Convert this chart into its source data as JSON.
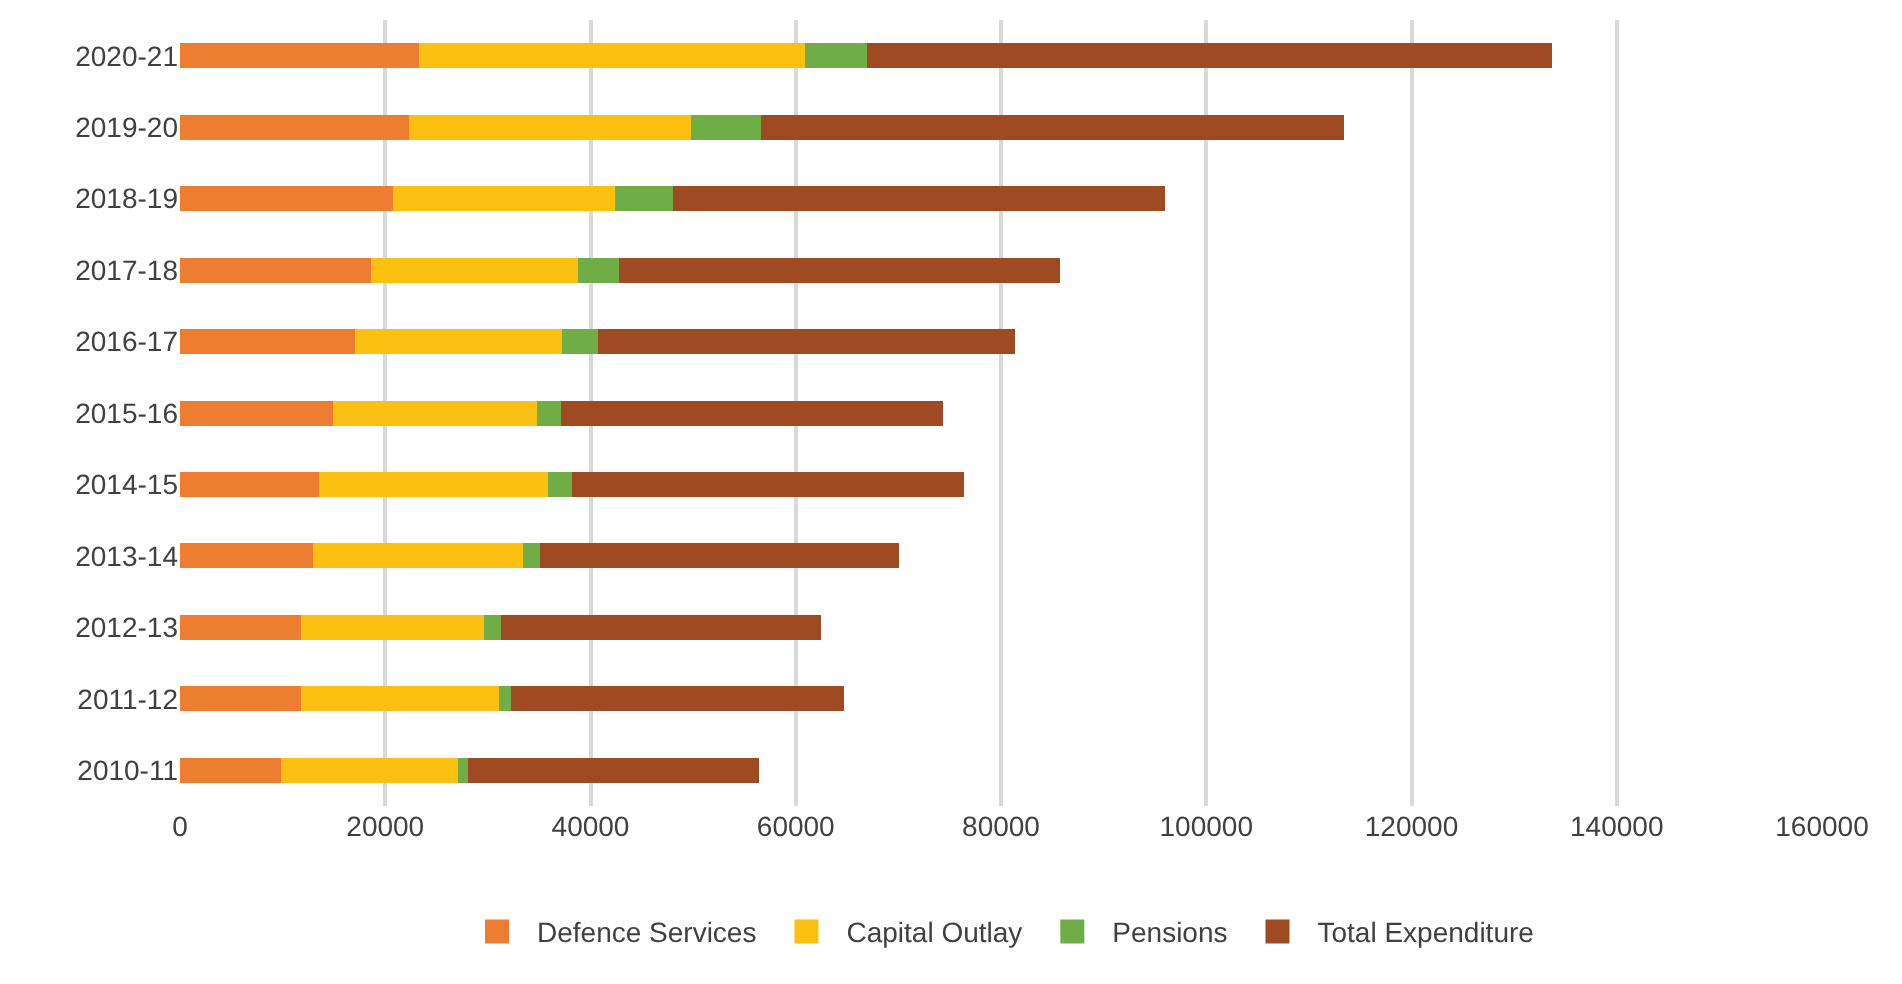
{
  "chart_data": {
    "type": "bar",
    "orientation": "horizontal",
    "stacked": true,
    "categories": [
      "2020-21",
      "2019-20",
      "2018-19",
      "2017-18",
      "2016-17",
      "2015-16",
      "2014-15",
      "2013-14",
      "2012-13",
      "2011-12",
      "2010-11"
    ],
    "series": [
      {
        "name": "Defence Services",
        "color": "#ed7d31",
        "values": [
          23300,
          22300,
          20800,
          18600,
          17100,
          14900,
          13500,
          13000,
          11800,
          11800,
          9800
        ]
      },
      {
        "name": "Capital Outlay",
        "color": "#fbc012",
        "values": [
          37600,
          27500,
          21600,
          20200,
          20100,
          19900,
          22400,
          20400,
          17800,
          19300,
          17300
        ]
      },
      {
        "name": "Pensions",
        "color": "#70ad47",
        "values": [
          6000,
          6800,
          5600,
          4000,
          3500,
          2300,
          2300,
          1700,
          1700,
          1200,
          1000
        ]
      },
      {
        "name": "Total Expenditure",
        "color": "#9e4a23",
        "values": [
          66800,
          56800,
          48000,
          42900,
          40700,
          37200,
          38200,
          35000,
          31200,
          32400,
          28300
        ]
      }
    ],
    "xlim": [
      0,
      160000
    ],
    "xticks": [
      0,
      20000,
      40000,
      60000,
      80000,
      100000,
      120000,
      140000,
      160000
    ],
    "grid": "x",
    "legend": "bottom"
  }
}
